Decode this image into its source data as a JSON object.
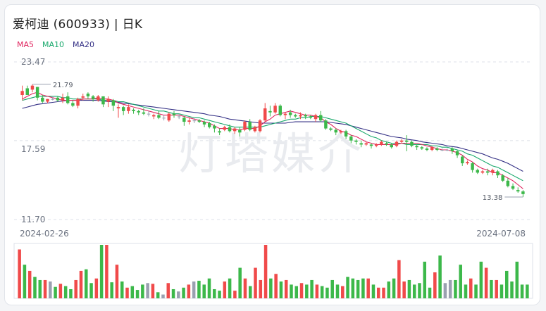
{
  "header": {
    "title": "爱柯迪 (600933) | 日K"
  },
  "legend": [
    {
      "label": "MA5",
      "color": "#e0245e"
    },
    {
      "label": "MA10",
      "color": "#18a86b"
    },
    {
      "label": "MA20",
      "color": "#343085"
    }
  ],
  "watermark": "灯塔媒介",
  "chart_data": {
    "type": "candlestick",
    "ylim": [
      11.7,
      23.47
    ],
    "y_ticks": [
      "23.47",
      "17.59",
      "11.70"
    ],
    "x_start_label": "2024-02-26",
    "x_end_label": "2024-07-08",
    "max_label": "21.79",
    "min_label": "13.38",
    "colors": {
      "up": "#f04a4a",
      "down": "#3cb84a",
      "flat": "#9aa0b0"
    },
    "candles": [
      [
        21.0,
        21.7,
        21.3,
        20.6
      ],
      [
        21.5,
        21.7,
        21.0,
        21.4
      ],
      [
        21.4,
        21.8,
        21.7,
        21.2
      ],
      [
        21.6,
        21.6,
        20.8,
        20.6
      ],
      [
        20.8,
        21.0,
        20.5,
        20.4
      ],
      [
        20.5,
        20.7,
        20.7,
        20.4
      ],
      [
        20.7,
        20.9,
        20.7,
        20.6
      ],
      [
        20.8,
        20.9,
        20.6,
        20.5
      ],
      [
        20.6,
        21.1,
        20.8,
        20.4
      ],
      [
        20.9,
        21.2,
        20.4,
        20.3
      ],
      [
        20.4,
        20.6,
        20.2,
        20.1
      ],
      [
        20.2,
        20.8,
        20.7,
        20.0
      ],
      [
        20.8,
        21.1,
        20.9,
        20.6
      ],
      [
        21.1,
        21.2,
        20.9,
        20.7
      ],
      [
        20.9,
        21.0,
        20.7,
        20.5
      ],
      [
        20.6,
        21.0,
        20.9,
        20.5
      ],
      [
        20.9,
        20.9,
        20.3,
        20.1
      ],
      [
        20.5,
        20.9,
        20.7,
        20.1
      ],
      [
        20.6,
        20.7,
        20.2,
        19.8
      ],
      [
        20.0,
        20.3,
        20.1,
        19.3
      ],
      [
        20.1,
        20.2,
        19.8,
        19.5
      ],
      [
        19.8,
        20.3,
        20.1,
        19.6
      ],
      [
        19.9,
        20.0,
        19.8,
        19.6
      ],
      [
        19.8,
        19.9,
        19.7,
        19.5
      ],
      [
        19.7,
        20.0,
        19.6,
        19.5
      ],
      [
        19.6,
        19.8,
        19.6,
        19.4
      ],
      [
        19.4,
        19.6,
        19.5,
        19.2
      ],
      [
        19.5,
        19.8,
        19.3,
        19.2
      ],
      [
        19.3,
        19.5,
        19.3,
        19.1
      ],
      [
        19.1,
        19.7,
        19.6,
        19.0
      ],
      [
        19.6,
        19.8,
        19.5,
        19.3
      ],
      [
        19.4,
        19.6,
        19.4,
        19.2
      ],
      [
        19.3,
        19.4,
        19.0,
        18.7
      ],
      [
        19.0,
        19.3,
        19.1,
        18.8
      ],
      [
        19.1,
        19.3,
        19.1,
        18.9
      ],
      [
        19.1,
        19.2,
        19.0,
        18.9
      ],
      [
        19.0,
        19.1,
        18.8,
        18.6
      ],
      [
        18.9,
        19.0,
        18.6,
        18.5
      ],
      [
        18.7,
        18.8,
        18.5,
        18.2
      ],
      [
        18.3,
        18.5,
        18.2,
        18.0
      ],
      [
        18.4,
        18.7,
        18.6,
        18.3
      ],
      [
        18.6,
        18.8,
        18.3,
        18.2
      ],
      [
        18.3,
        18.6,
        18.5,
        18.1
      ],
      [
        18.4,
        18.6,
        18.2,
        17.9
      ],
      [
        18.4,
        19.1,
        19.0,
        18.3
      ],
      [
        19.0,
        19.2,
        18.4,
        18.3
      ],
      [
        18.3,
        18.7,
        18.6,
        18.2
      ],
      [
        18.3,
        19.2,
        19.1,
        18.2
      ],
      [
        19.1,
        20.4,
        20.0,
        19.0
      ],
      [
        19.8,
        20.2,
        19.7,
        19.4
      ],
      [
        19.7,
        20.4,
        20.2,
        19.6
      ],
      [
        20.2,
        20.3,
        19.5,
        19.4
      ],
      [
        19.5,
        19.7,
        19.6,
        19.2
      ],
      [
        19.7,
        19.9,
        19.5,
        19.3
      ],
      [
        19.5,
        19.6,
        19.4,
        19.3
      ],
      [
        19.4,
        19.7,
        19.5,
        19.2
      ],
      [
        19.5,
        19.6,
        19.4,
        19.2
      ],
      [
        19.4,
        19.5,
        19.3,
        19.2
      ],
      [
        19.2,
        19.6,
        19.5,
        19.0
      ],
      [
        19.5,
        19.8,
        19.1,
        19.0
      ],
      [
        19.1,
        19.2,
        18.5,
        18.4
      ],
      [
        18.5,
        18.6,
        18.4,
        18.3
      ],
      [
        18.4,
        18.5,
        18.2,
        18.0
      ],
      [
        18.2,
        18.4,
        18.3,
        18.1
      ],
      [
        18.3,
        18.4,
        17.9,
        17.7
      ],
      [
        17.9,
        18.0,
        17.6,
        17.4
      ],
      [
        17.6,
        17.7,
        17.5,
        17.3
      ],
      [
        17.4,
        17.6,
        17.3,
        17.1
      ],
      [
        17.3,
        17.5,
        17.4,
        17.2
      ],
      [
        17.3,
        17.4,
        17.2,
        17.0
      ],
      [
        17.2,
        17.4,
        17.3,
        17.1
      ],
      [
        17.3,
        17.6,
        17.5,
        17.2
      ],
      [
        17.4,
        17.5,
        17.3,
        17.2
      ],
      [
        17.3,
        17.4,
        17.1,
        17.0
      ],
      [
        17.2,
        17.6,
        17.5,
        17.1
      ],
      [
        17.5,
        17.7,
        17.6,
        17.4
      ],
      [
        17.6,
        18.0,
        17.5,
        16.8
      ],
      [
        17.5,
        17.6,
        17.2,
        17.1
      ],
      [
        17.2,
        17.3,
        17.1,
        16.9
      ],
      [
        17.1,
        17.2,
        17.0,
        16.9
      ],
      [
        17.0,
        17.1,
        16.9,
        16.8
      ],
      [
        16.9,
        17.2,
        17.1,
        16.8
      ],
      [
        17.0,
        17.1,
        16.9,
        16.8
      ],
      [
        16.9,
        17.0,
        16.9,
        16.8
      ],
      [
        16.9,
        17.0,
        16.9,
        16.8
      ],
      [
        17.0,
        17.1,
        16.8,
        16.6
      ],
      [
        16.8,
        16.9,
        16.5,
        16.3
      ],
      [
        16.4,
        16.5,
        15.9,
        15.7
      ],
      [
        15.9,
        16.1,
        16.0,
        15.8
      ],
      [
        15.9,
        16.0,
        15.4,
        15.2
      ],
      [
        15.4,
        15.5,
        15.2,
        15.1
      ],
      [
        15.2,
        15.4,
        15.3,
        15.1
      ],
      [
        15.3,
        15.5,
        15.2,
        15.0
      ],
      [
        15.2,
        15.5,
        15.4,
        15.0
      ],
      [
        15.3,
        15.4,
        15.0,
        14.8
      ],
      [
        15.0,
        15.1,
        14.6,
        14.5
      ],
      [
        14.6,
        14.8,
        14.2,
        14.1
      ],
      [
        14.2,
        14.4,
        14.0,
        13.9
      ],
      [
        13.9,
        14.1,
        13.8,
        13.7
      ],
      [
        13.8,
        13.9,
        13.6,
        13.38
      ]
    ],
    "ma5": [
      20.7,
      20.9,
      21.1,
      21.2,
      21.0,
      20.9,
      20.8,
      20.7,
      20.6,
      20.6,
      20.6,
      20.6,
      20.7,
      20.7,
      20.7,
      20.8,
      20.7,
      20.7,
      20.6,
      20.4,
      20.3,
      20.2,
      20.1,
      20.0,
      19.9,
      19.8,
      19.7,
      19.6,
      19.5,
      19.5,
      19.5,
      19.5,
      19.4,
      19.3,
      19.2,
      19.1,
      19.0,
      18.9,
      18.7,
      18.5,
      18.5,
      18.5,
      18.4,
      18.4,
      18.5,
      18.5,
      18.5,
      18.7,
      19.0,
      19.2,
      19.5,
      19.6,
      19.7,
      19.8,
      19.7,
      19.6,
      19.5,
      19.5,
      19.4,
      19.3,
      19.0,
      18.8,
      18.5,
      18.3,
      18.2,
      18.0,
      17.9,
      17.7,
      17.5,
      17.4,
      17.3,
      17.3,
      17.3,
      17.3,
      17.3,
      17.4,
      17.4,
      17.4,
      17.4,
      17.3,
      17.2,
      17.1,
      17.0,
      16.9,
      16.9,
      16.8,
      16.7,
      16.5,
      16.2,
      16.0,
      15.7,
      15.5,
      15.4,
      15.2,
      15.2,
      15.0,
      14.8,
      14.6,
      14.3,
      14.0
    ],
    "ma10": [
      20.6,
      20.7,
      20.8,
      20.9,
      20.9,
      20.9,
      20.9,
      20.9,
      20.8,
      20.8,
      20.7,
      20.7,
      20.7,
      20.7,
      20.7,
      20.7,
      20.6,
      20.6,
      20.6,
      20.5,
      20.5,
      20.4,
      20.3,
      20.2,
      20.1,
      20.0,
      19.9,
      19.8,
      19.8,
      19.7,
      19.6,
      19.6,
      19.5,
      19.4,
      19.3,
      19.3,
      19.2,
      19.1,
      19.0,
      18.9,
      18.8,
      18.7,
      18.6,
      18.6,
      18.6,
      18.6,
      18.6,
      18.6,
      18.7,
      18.8,
      18.9,
      19.0,
      19.1,
      19.2,
      19.2,
      19.3,
      19.3,
      19.4,
      19.4,
      19.4,
      19.3,
      19.2,
      19.1,
      19.0,
      18.9,
      18.7,
      18.5,
      18.3,
      18.1,
      17.9,
      17.8,
      17.6,
      17.5,
      17.4,
      17.4,
      17.4,
      17.3,
      17.3,
      17.3,
      17.3,
      17.3,
      17.2,
      17.2,
      17.1,
      17.1,
      17.0,
      16.9,
      16.8,
      16.6,
      16.5,
      16.3,
      16.1,
      15.9,
      15.7,
      15.6,
      15.4,
      15.2,
      15.0,
      14.8,
      14.6
    ],
    "ma20": [
      20.0,
      20.1,
      20.2,
      20.3,
      20.35,
      20.4,
      20.45,
      20.5,
      20.55,
      20.6,
      20.6,
      20.6,
      20.6,
      20.6,
      20.6,
      20.6,
      20.55,
      20.5,
      20.5,
      20.45,
      20.4,
      20.35,
      20.3,
      20.25,
      20.2,
      20.15,
      20.1,
      20.05,
      20.0,
      19.95,
      19.9,
      19.85,
      19.8,
      19.75,
      19.7,
      19.65,
      19.6,
      19.5,
      19.45,
      19.4,
      19.3,
      19.2,
      19.15,
      19.1,
      19.05,
      19.0,
      18.95,
      18.9,
      18.9,
      18.9,
      18.9,
      18.9,
      18.9,
      18.95,
      19.0,
      19.0,
      19.0,
      19.0,
      19.0,
      19.0,
      19.0,
      18.95,
      18.9,
      18.85,
      18.8,
      18.7,
      18.6,
      18.5,
      18.4,
      18.3,
      18.2,
      18.1,
      18.0,
      17.9,
      17.85,
      17.8,
      17.7,
      17.65,
      17.6,
      17.5,
      17.45,
      17.4,
      17.35,
      17.3,
      17.2,
      17.15,
      17.1,
      17.0,
      16.9,
      16.8,
      16.7,
      16.6,
      16.45,
      16.3,
      16.2,
      16.05,
      15.9,
      15.7,
      15.5,
      15.3
    ],
    "volumes": [
      64,
      44,
      36,
      28,
      24,
      24,
      22,
      15,
      19,
      16,
      12,
      24,
      36,
      38,
      20,
      26,
      70,
      70,
      21,
      44,
      22,
      14,
      16,
      11,
      18,
      20,
      19,
      8,
      5,
      20,
      12,
      9,
      14,
      18,
      22,
      23,
      18,
      26,
      12,
      10,
      22,
      26,
      10,
      40,
      26,
      16,
      40,
      24,
      70,
      26,
      32,
      22,
      24,
      18,
      16,
      20,
      18,
      24,
      18,
      16,
      14,
      24,
      18,
      16,
      28,
      26,
      24,
      26,
      26,
      18,
      14,
      14,
      22,
      26,
      50,
      22,
      24,
      18,
      20,
      48,
      14,
      34,
      56,
      20,
      24,
      24,
      44,
      18,
      26,
      18,
      48,
      40,
      24,
      24,
      18,
      36,
      22,
      48,
      18,
      18
    ]
  }
}
